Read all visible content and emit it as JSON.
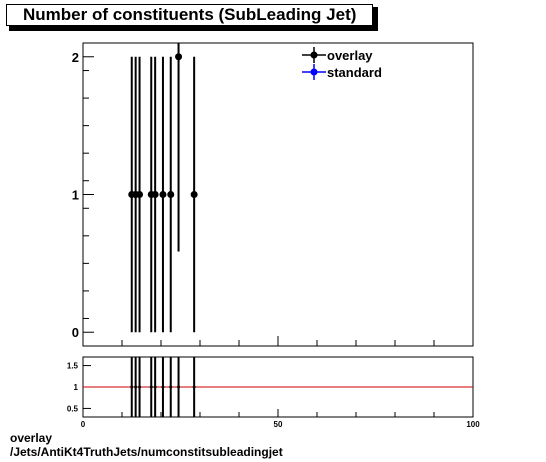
{
  "title": "Number of constituents (SubLeading Jet)",
  "footer": {
    "line1": "overlay",
    "line2": "/Jets/AntiKt4TruthJets/numconstitsubleadingjet"
  },
  "colors": {
    "overlay": "#000000",
    "standard": "#0000ff",
    "ratio_line": "#cc0000"
  },
  "chart_data": [
    {
      "type": "scatter",
      "title": "Number of constituents (SubLeading Jet)",
      "xlim": [
        0,
        100
      ],
      "ylim": [
        -0.1,
        2.1
      ],
      "y_ticks": [
        0,
        1,
        2
      ],
      "legend": {
        "placement": "top-right",
        "entries": [
          "overlay",
          "standard"
        ]
      },
      "series": [
        {
          "name": "overlay",
          "x": [
            12.5,
            13.5,
            14.5,
            17.5,
            18.5,
            20.5,
            22.5,
            24.5,
            28.5
          ],
          "y": [
            1,
            1,
            1,
            1,
            1,
            1,
            1,
            2,
            1
          ],
          "err": [
            1,
            1,
            1,
            1,
            1,
            1,
            1,
            1.414,
            1
          ]
        },
        {
          "name": "standard",
          "x": [],
          "y": []
        }
      ]
    },
    {
      "type": "line",
      "description_free": true,
      "xlim": [
        0,
        100
      ],
      "ylim": [
        0.3,
        1.7
      ],
      "x_ticks": [
        0,
        50,
        100
      ],
      "y_ticks": [
        0.5,
        1,
        1.5
      ],
      "reference_line": 1,
      "ratio_markers_x": [
        12.5,
        13.5,
        14.5,
        17.5,
        18.5,
        20.5,
        22.5,
        24.5,
        28.5
      ]
    }
  ]
}
